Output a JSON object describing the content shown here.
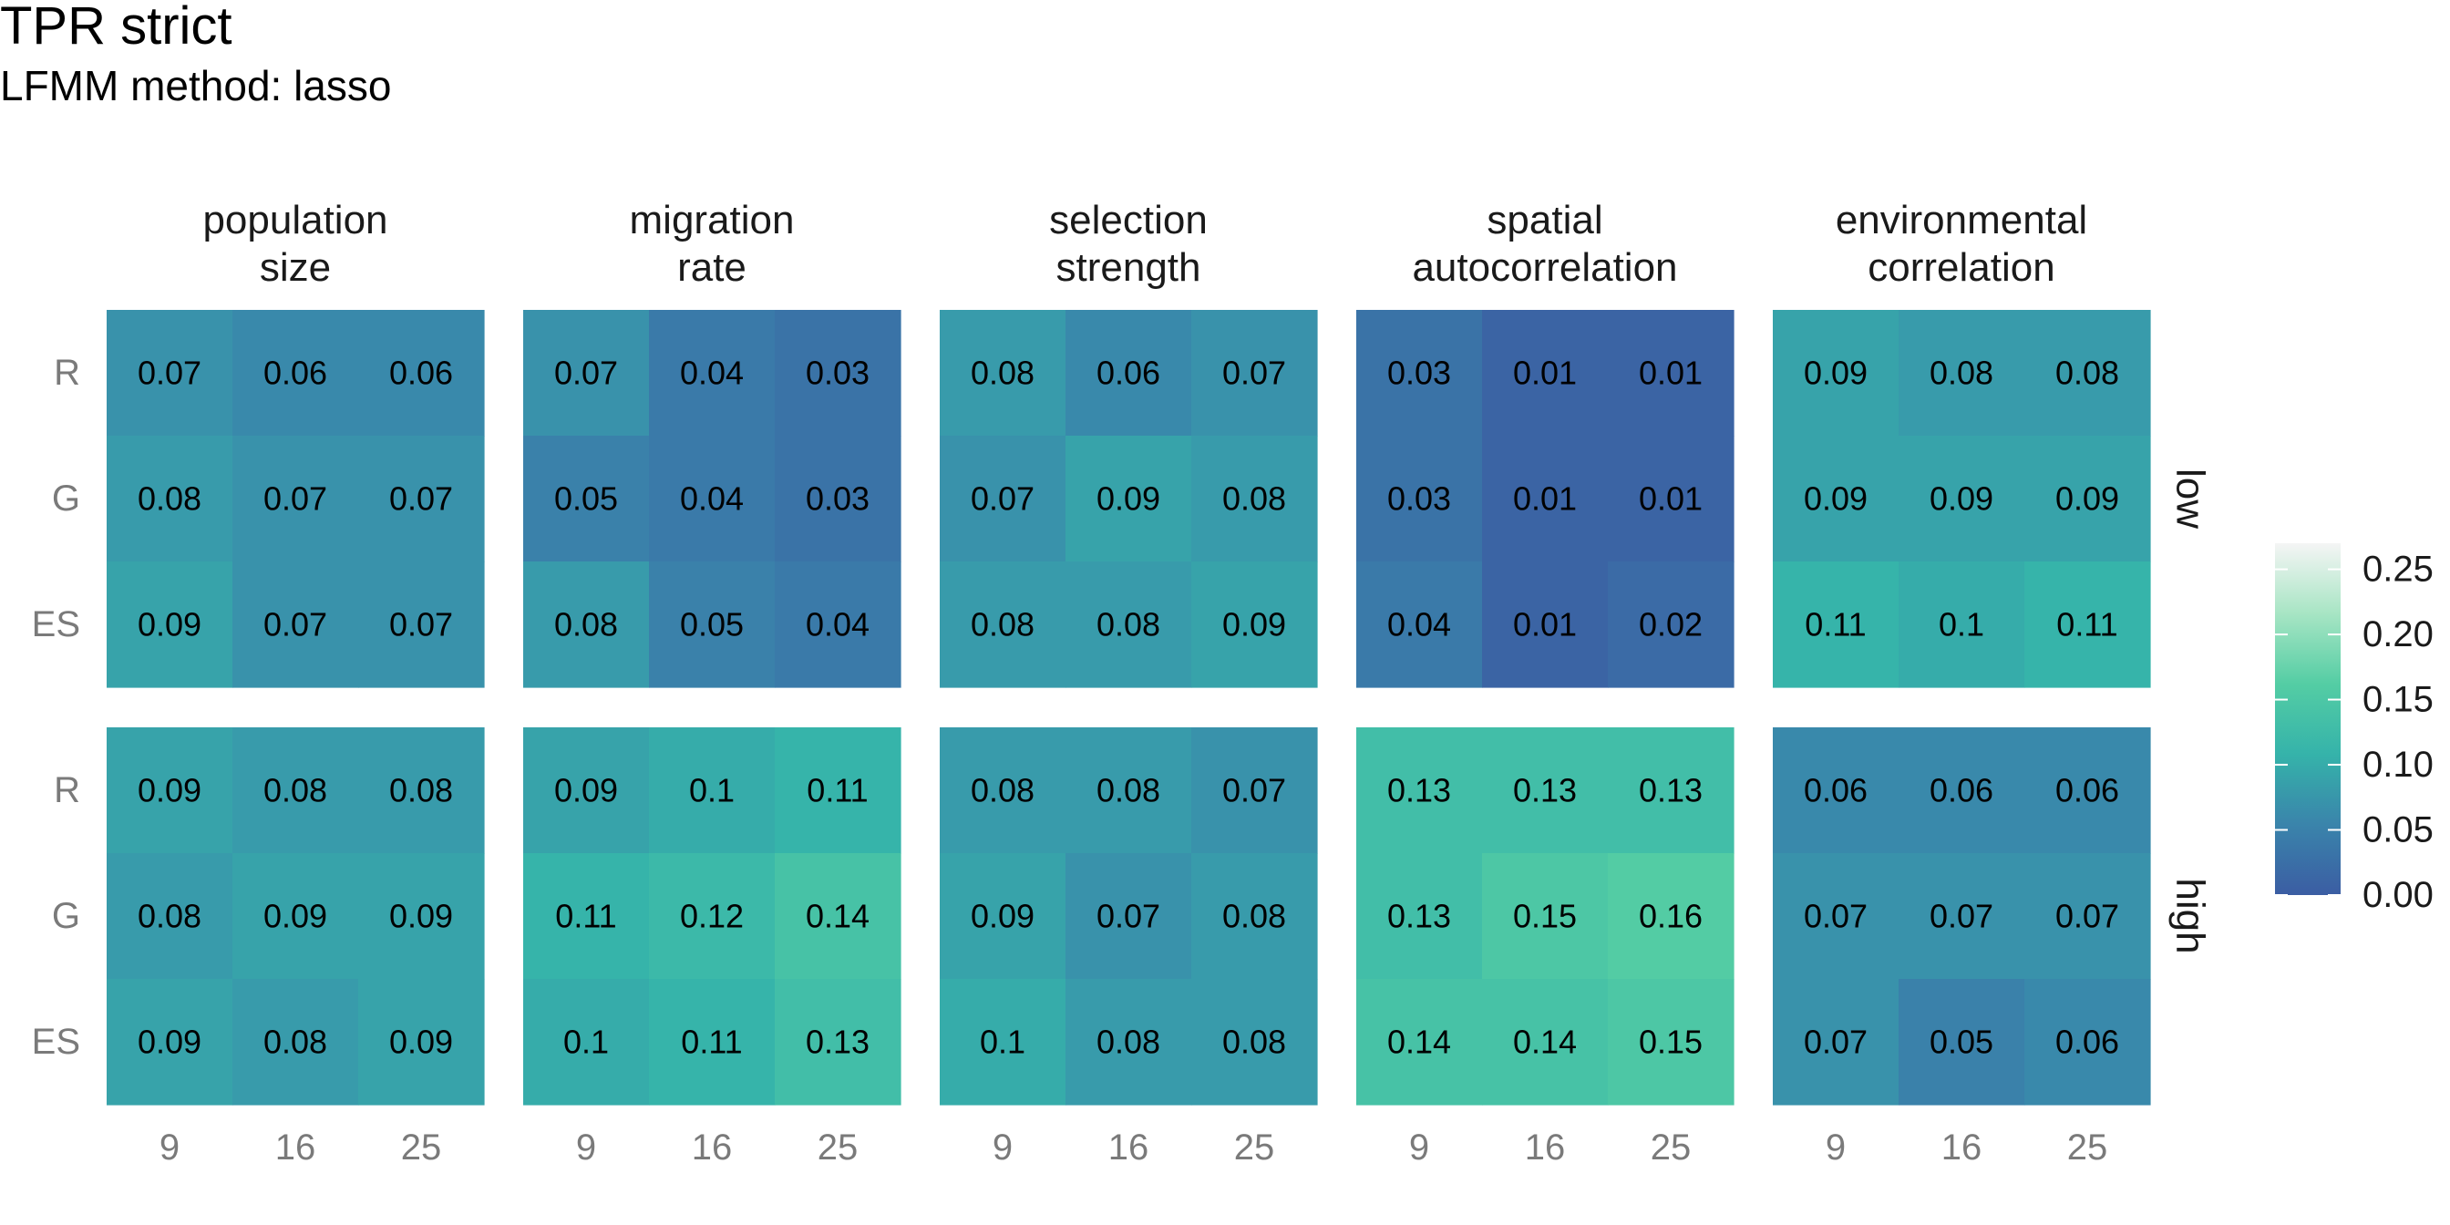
{
  "chart_data": {
    "type": "heatmap",
    "title": "TPR strict",
    "subtitle": "LFMM method: lasso",
    "facet_columns": [
      [
        "population",
        "size"
      ],
      [
        "migration",
        "rate"
      ],
      [
        "selection",
        "strength"
      ],
      [
        "spatial",
        "autocorrelation"
      ],
      [
        "environmental",
        "correlation"
      ]
    ],
    "facet_rows": [
      "low",
      "high"
    ],
    "x_categories": [
      "9",
      "16",
      "25"
    ],
    "y_categories": [
      "R",
      "G",
      "ES"
    ],
    "values": [
      [
        [
          [
            0.07,
            0.06,
            0.06
          ],
          [
            0.08,
            0.07,
            0.07
          ],
          [
            0.09,
            0.07,
            0.07
          ]
        ],
        [
          [
            0.07,
            0.04,
            0.03
          ],
          [
            0.05,
            0.04,
            0.03
          ],
          [
            0.08,
            0.05,
            0.04
          ]
        ],
        [
          [
            0.08,
            0.06,
            0.07
          ],
          [
            0.07,
            0.09,
            0.08
          ],
          [
            0.08,
            0.08,
            0.09
          ]
        ],
        [
          [
            0.03,
            0.01,
            0.01
          ],
          [
            0.03,
            0.01,
            0.01
          ],
          [
            0.04,
            0.01,
            0.02
          ]
        ],
        [
          [
            0.09,
            0.08,
            0.08
          ],
          [
            0.09,
            0.09,
            0.09
          ],
          [
            0.11,
            0.1,
            0.11
          ]
        ]
      ],
      [
        [
          [
            0.09,
            0.08,
            0.08
          ],
          [
            0.08,
            0.09,
            0.09
          ],
          [
            0.09,
            0.08,
            0.09
          ]
        ],
        [
          [
            0.09,
            0.1,
            0.11
          ],
          [
            0.11,
            0.12,
            0.14
          ],
          [
            0.1,
            0.11,
            0.13
          ]
        ],
        [
          [
            0.08,
            0.08,
            0.07
          ],
          [
            0.09,
            0.07,
            0.08
          ],
          [
            0.1,
            0.08,
            0.08
          ]
        ],
        [
          [
            0.13,
            0.13,
            0.13
          ],
          [
            0.13,
            0.15,
            0.16
          ],
          [
            0.14,
            0.14,
            0.15
          ]
        ],
        [
          [
            0.06,
            0.06,
            0.06
          ],
          [
            0.07,
            0.07,
            0.07
          ],
          [
            0.07,
            0.05,
            0.06
          ]
        ]
      ]
    ],
    "colorbar": {
      "range": [
        0,
        0.27
      ],
      "ticks": [
        "0.00",
        "0.05",
        "0.10",
        "0.15",
        "0.20",
        "0.25"
      ],
      "stops": [
        "#3b5da3",
        "#3a84ab",
        "#35b3aa",
        "#54cda4",
        "#a7e5c4",
        "#f5f5f5"
      ]
    }
  }
}
